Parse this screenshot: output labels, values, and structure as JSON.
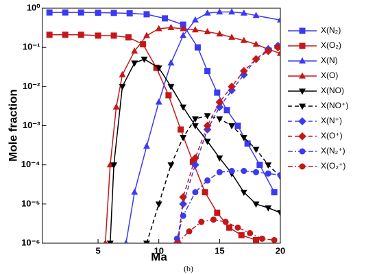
{
  "chart_data": {
    "type": "line",
    "xlabel": "Ma",
    "ylabel": "Mole fraction",
    "caption": "(b)",
    "log_y": true,
    "xlim": [
      0.4,
      20
    ],
    "ylim": [
      1e-06,
      1
    ],
    "xticks": [
      5,
      10,
      15,
      20
    ],
    "yticks": [
      {
        "value": 1,
        "label": "10⁰"
      },
      {
        "value": 0.1,
        "label": "10⁻¹"
      },
      {
        "value": 0.01,
        "label": "10⁻²"
      },
      {
        "value": 0.001,
        "label": "10⁻³"
      },
      {
        "value": 0.0001,
        "label": "10⁻⁴"
      },
      {
        "value": 1e-05,
        "label": "10⁻⁵"
      },
      {
        "value": 1e-06,
        "label": "10⁻⁶"
      }
    ],
    "series": [
      {
        "name": "X(N₂)",
        "color": "#3a3af0",
        "marker": "square",
        "dash": "solid",
        "x": [
          1,
          2.3,
          3.6,
          5,
          6.3,
          7.6,
          9,
          10.5,
          12,
          13.2,
          14,
          14.8,
          15.6,
          16.5,
          17.3,
          18.3,
          19.5
        ],
        "values": [
          0.78,
          0.78,
          0.78,
          0.77,
          0.76,
          0.74,
          0.7,
          0.55,
          0.38,
          0.1,
          0.025,
          0.007,
          0.0025,
          0.001,
          0.00035,
          0.0001,
          2e-05
        ]
      },
      {
        "name": "X(O₂)",
        "color": "#c41818",
        "marker": "square",
        "dash": "solid",
        "x": [
          1,
          2.3,
          3.6,
          5,
          6.3,
          7.5,
          8.7,
          9.8,
          10.8,
          11.8,
          12.8,
          13.8,
          14.8,
          15.8,
          16.8,
          18
        ],
        "values": [
          0.21,
          0.21,
          0.21,
          0.2,
          0.2,
          0.18,
          0.12,
          0.03,
          0.006,
          0.0008,
          0.00012,
          2e-05,
          6e-06,
          2.5e-06,
          1.6e-06,
          1.2e-06
        ]
      },
      {
        "name": "X(N)",
        "color": "#3a3af0",
        "marker": "triangle",
        "dash": "solid",
        "x": [
          7.3,
          8,
          9,
          10,
          11,
          12,
          13,
          14,
          15,
          16,
          17,
          18,
          20
        ],
        "values": [
          1e-06,
          2e-05,
          0.0003,
          0.004,
          0.04,
          0.2,
          0.5,
          0.75,
          0.8,
          0.8,
          0.75,
          0.65,
          0.5
        ]
      },
      {
        "name": "X(O)",
        "color": "#c41818",
        "marker": "triangle",
        "dash": "solid",
        "x": [
          5.6,
          6,
          6.5,
          7,
          8,
          9,
          10,
          11,
          12,
          13,
          14,
          15,
          16,
          17,
          18,
          19,
          20
        ],
        "values": [
          1e-06,
          0.0001,
          0.003,
          0.02,
          0.08,
          0.2,
          0.3,
          0.32,
          0.3,
          0.28,
          0.25,
          0.22,
          0.18,
          0.15,
          0.12,
          0.09,
          0.07
        ]
      },
      {
        "name": "X(NO)",
        "color": "#000000",
        "marker": "triangle-down",
        "dash": "solid",
        "x": [
          6,
          6.3,
          7,
          8,
          8.8,
          10,
          11,
          12,
          13,
          14,
          15,
          16,
          17,
          18,
          19,
          20
        ],
        "values": [
          1e-06,
          0.0001,
          0.01,
          0.04,
          0.05,
          0.03,
          0.01,
          0.003,
          0.001,
          0.0004,
          0.00015,
          6e-05,
          2e-05,
          1e-05,
          8e-06,
          6e-06
        ]
      },
      {
        "name": "X(NO⁺)",
        "color": "#000000",
        "marker": "triangle-down",
        "dash": "dashed",
        "x": [
          9,
          10,
          11,
          12,
          13,
          14,
          15,
          16,
          17,
          18,
          19,
          20
        ],
        "values": [
          1e-06,
          1e-05,
          0.0001,
          0.0005,
          0.0015,
          0.0018,
          0.0015,
          0.001,
          0.0005,
          0.00025,
          0.0001,
          5e-05
        ]
      },
      {
        "name": "X(N⁺)",
        "color": "#3a3af0",
        "marker": "diamond",
        "dash": "dashed",
        "x": [
          11.5,
          12,
          13,
          14,
          15,
          16,
          17,
          18,
          19,
          19.8
        ],
        "values": [
          1e-06,
          1e-05,
          0.0001,
          0.0008,
          0.003,
          0.008,
          0.02,
          0.05,
          0.09,
          0.11
        ]
      },
      {
        "name": "X(O⁺)",
        "color": "#c41818",
        "marker": "diamond",
        "dash": "dashed",
        "x": [
          11.6,
          12,
          13,
          14,
          15,
          16,
          17,
          18,
          19,
          19.8
        ],
        "values": [
          1e-06,
          1.5e-05,
          0.00015,
          0.001,
          0.004,
          0.01,
          0.025,
          0.05,
          0.08,
          0.1
        ]
      },
      {
        "name": "X(N₂⁺)",
        "color": "#3a3af0",
        "marker": "circle",
        "dash": "dashdot",
        "x": [
          11.5,
          12,
          13,
          14,
          15,
          16,
          17,
          18,
          19,
          20
        ],
        "values": [
          1.3e-06,
          5e-06,
          2e-05,
          4e-05,
          6.5e-05,
          7e-05,
          7e-05,
          6.5e-05,
          6e-05,
          5.5e-05
        ]
      },
      {
        "name": "X(O₂⁺)",
        "color": "#c41818",
        "marker": "circle",
        "dash": "dashdot",
        "x": [
          11.5,
          12.5,
          13.5,
          14.5,
          15.5,
          16.5,
          17.5,
          18.5,
          19.5
        ],
        "values": [
          1e-06,
          2e-06,
          3.5e-06,
          4e-06,
          3.5e-06,
          2.5e-06,
          1.8e-06,
          1.3e-06,
          1.2e-06
        ]
      }
    ]
  }
}
